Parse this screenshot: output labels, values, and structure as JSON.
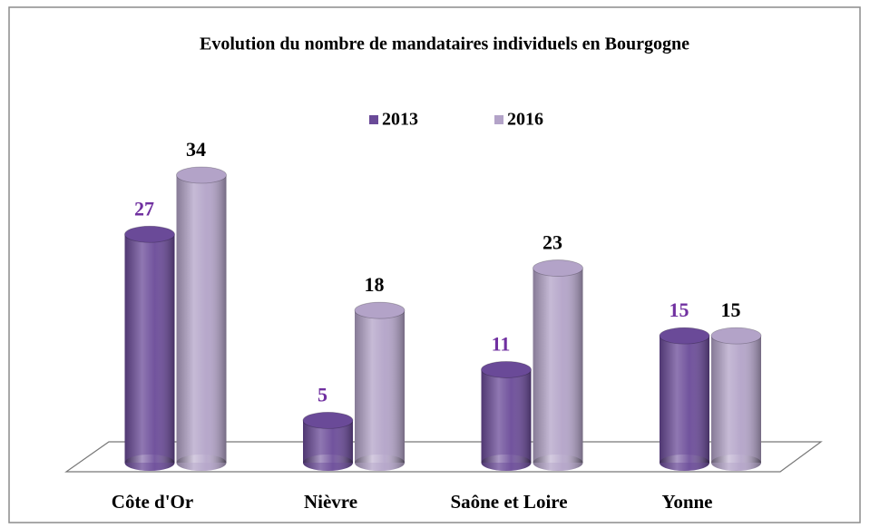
{
  "chart_data": {
    "type": "bar",
    "title": "Evolution du nombre de mandataires individuels  en Bourgogne",
    "categories": [
      "Côte d'Or",
      "Nièvre",
      "Saône et Loire",
      "Yonne"
    ],
    "series": [
      {
        "name": "2013",
        "color": "#6a4a98",
        "label_color": "#7030a0",
        "values": [
          27,
          5,
          11,
          15
        ]
      },
      {
        "name": "2016",
        "color": "#b3a3c8",
        "label_color": "#000000",
        "values": [
          34,
          18,
          23,
          15
        ]
      }
    ],
    "legend": "top"
  }
}
